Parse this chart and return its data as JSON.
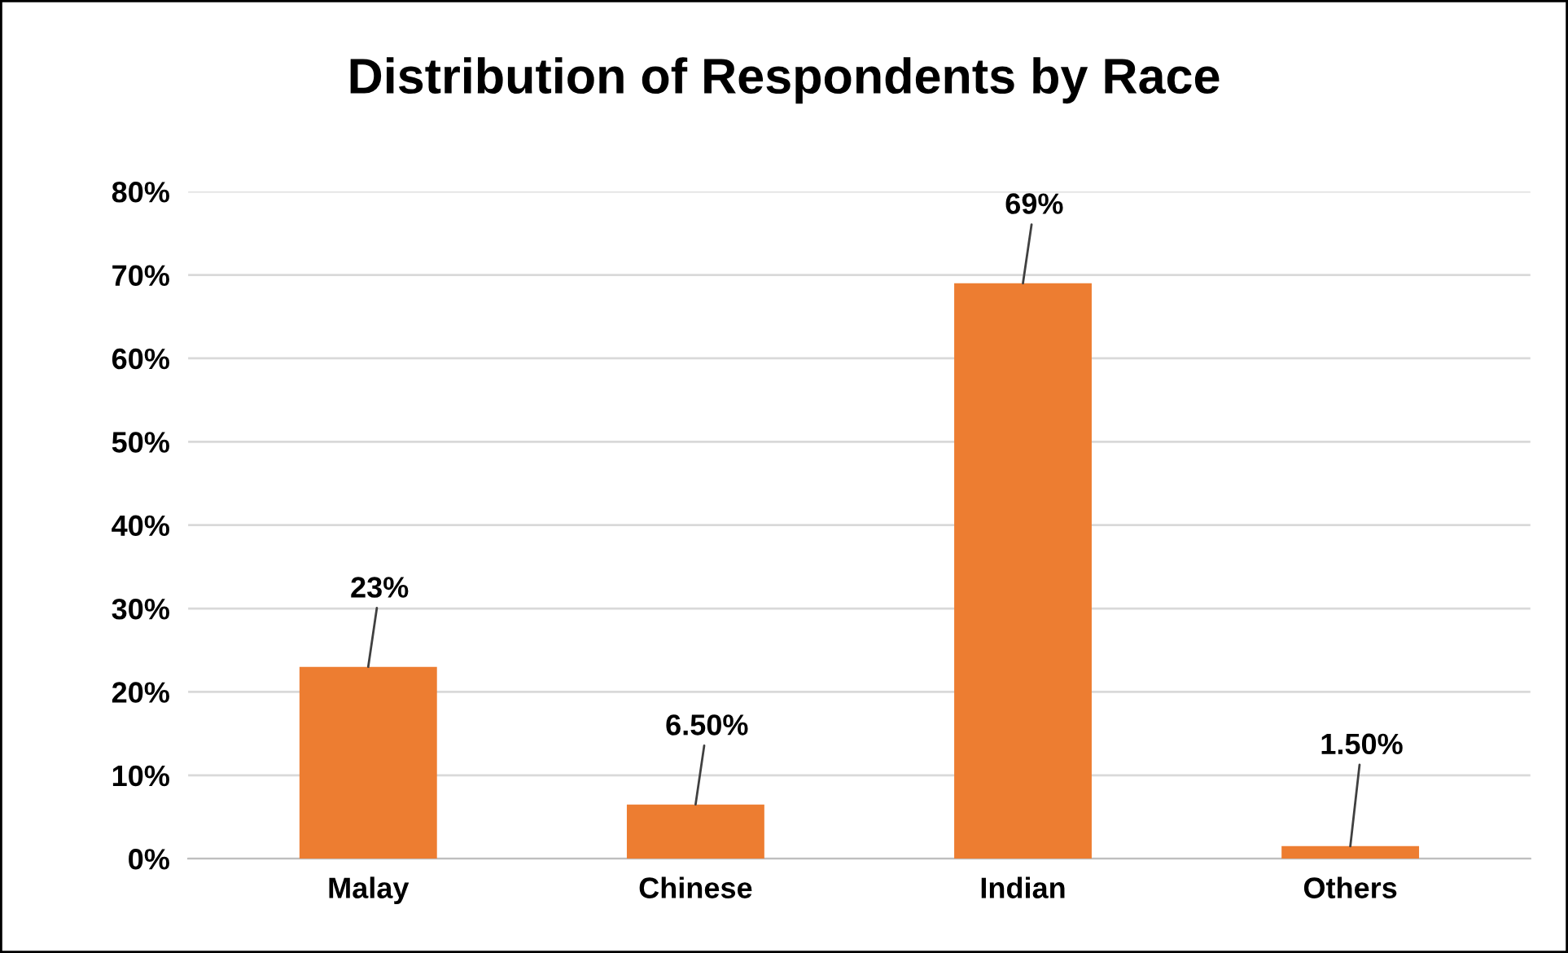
{
  "chart_data": {
    "type": "bar",
    "title": "Distribution of Respondents by Race",
    "categories": [
      "Malay",
      "Chinese",
      "Indian",
      "Others"
    ],
    "values": [
      23,
      6.5,
      69,
      1.5
    ],
    "value_labels": [
      "23%",
      "6.50%",
      "69%",
      "1.50%"
    ],
    "color": "#ed7d31",
    "ylim": [
      0,
      80
    ],
    "yticks": [
      {
        "value": 0,
        "label": "0%"
      },
      {
        "value": 10,
        "label": "10%"
      },
      {
        "value": 20,
        "label": "20%"
      },
      {
        "value": 30,
        "label": "30%"
      },
      {
        "value": 40,
        "label": "40%"
      },
      {
        "value": 50,
        "label": "50%"
      },
      {
        "value": 60,
        "label": "60%"
      },
      {
        "value": 70,
        "label": "70%"
      },
      {
        "value": 80,
        "label": "80%"
      }
    ],
    "grid": "y"
  }
}
